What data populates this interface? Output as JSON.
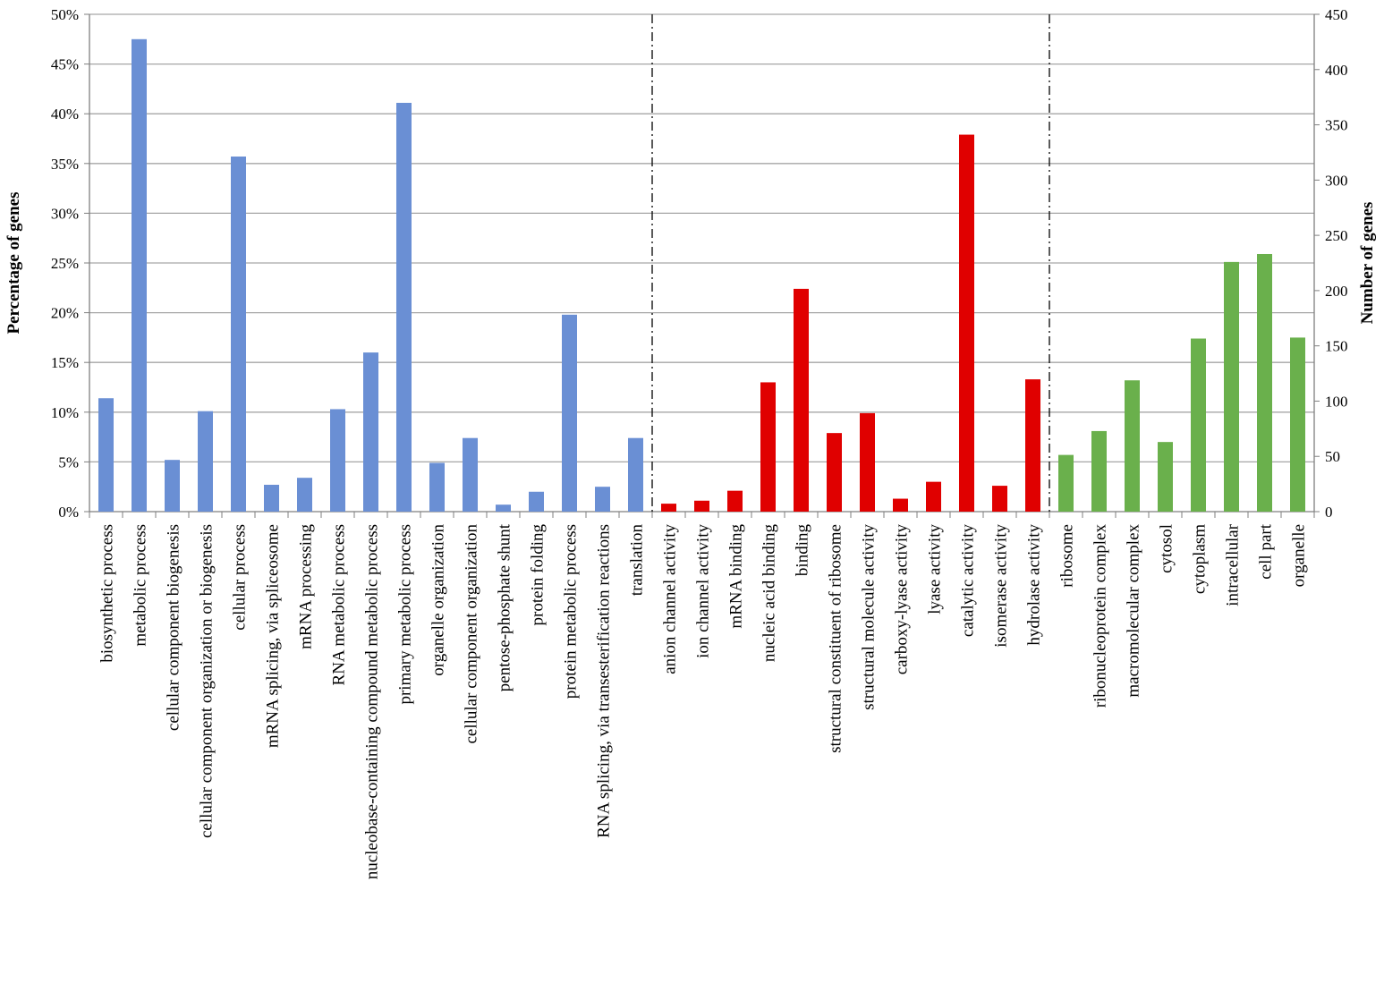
{
  "chart_data": {
    "type": "bar",
    "title": "",
    "ylabel": "Percentage of genes",
    "y2label": "Number of genes",
    "ylim": [
      0,
      0.5
    ],
    "y2lim": [
      0,
      450
    ],
    "yticks": [
      "0%",
      "5%",
      "10%",
      "15%",
      "20%",
      "25%",
      "30%",
      "35%",
      "40%",
      "45%",
      "50%"
    ],
    "y2ticks": [
      "0",
      "50",
      "100",
      "150",
      "200",
      "250",
      "300",
      "350",
      "400",
      "450"
    ],
    "grid": true,
    "legend": "none",
    "colors": {
      "biological_process": "#6a8fd4",
      "molecular_function": "#e00000",
      "cellular_component": "#6ab04c",
      "gridline": "#a6a6a6",
      "separator": "#000000"
    },
    "categories": [
      "biosynthetic process",
      "metabolic process",
      "cellular component biogenesis",
      "cellular component organization or biogenesis",
      "cellular process",
      "mRNA splicing, via spliceosome",
      "mRNA processing",
      "RNA metabolic process",
      "nucleobase-containing compound metabolic process",
      "primary metabolic process",
      "organelle organization",
      "cellular component organization",
      "pentose-phosphate shunt",
      "protein folding",
      "protein metabolic process",
      "RNA splicing, via transesterification reactions",
      "translation",
      "anion channel activity",
      "ion channel activity",
      "mRNA binding",
      "nucleic acid binding",
      "binding",
      "structural constituent of ribosome",
      "structural molecule activity",
      "carboxy-lyase activity",
      "lyase activity",
      "catalytic activity",
      "isomerase activity",
      "hydrolase activity",
      "ribosome",
      "ribonucleoprotein complex",
      "macromolecular complex",
      "cytosol",
      "cytoplasm",
      "intracellular",
      "cell part",
      "organelle"
    ],
    "groups": [
      "biological_process",
      "biological_process",
      "biological_process",
      "biological_process",
      "biological_process",
      "biological_process",
      "biological_process",
      "biological_process",
      "biological_process",
      "biological_process",
      "biological_process",
      "biological_process",
      "biological_process",
      "biological_process",
      "biological_process",
      "biological_process",
      "biological_process",
      "molecular_function",
      "molecular_function",
      "molecular_function",
      "molecular_function",
      "molecular_function",
      "molecular_function",
      "molecular_function",
      "molecular_function",
      "molecular_function",
      "molecular_function",
      "molecular_function",
      "molecular_function",
      "cellular_component",
      "cellular_component",
      "cellular_component",
      "cellular_component",
      "cellular_component",
      "cellular_component",
      "cellular_component",
      "cellular_component"
    ],
    "values": [
      0.114,
      0.475,
      0.052,
      0.101,
      0.357,
      0.027,
      0.034,
      0.103,
      0.16,
      0.411,
      0.049,
      0.074,
      0.007,
      0.02,
      0.198,
      0.025,
      0.074,
      0.008,
      0.011,
      0.021,
      0.13,
      0.224,
      0.079,
      0.099,
      0.013,
      0.03,
      0.379,
      0.026,
      0.133,
      0.057,
      0.081,
      0.132,
      0.07,
      0.174,
      0.251,
      0.259,
      0.175
    ],
    "separators_after_index": [
      16,
      28
    ]
  }
}
